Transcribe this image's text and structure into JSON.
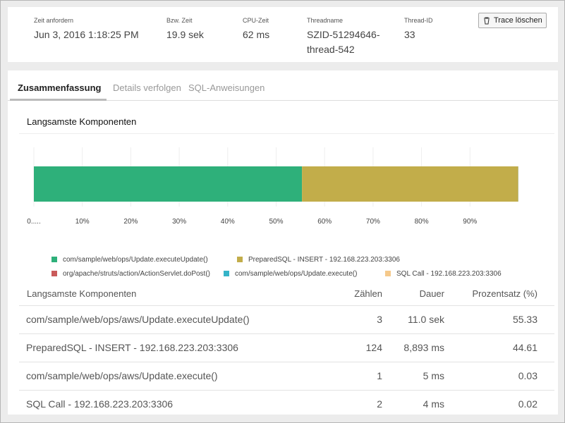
{
  "header": {
    "fields": [
      {
        "label": "Zeit anfordern",
        "value": "Jun 3, 2016 1:18:25 PM"
      },
      {
        "label": "Bzw. Zeit",
        "value": "19.9 sek"
      },
      {
        "label": "CPU-Zeit",
        "value": "62 ms"
      },
      {
        "label": "Threadname",
        "value": "SZID-51294646-thread-542"
      },
      {
        "label": "Thread-ID",
        "value": "33"
      }
    ],
    "button": "Trace löschen"
  },
  "tabs": [
    "Zusammenfassung",
    "Details verfolgen",
    "SQL-Anweisungen"
  ],
  "chart_data": {
    "type": "stacked-bar-horizontal",
    "title": "Langsamste Komponenten",
    "series": [
      {
        "name": "com/sample/web/ops/Update.executeUpdate()",
        "color": "#2eb07a",
        "values": [
          55.33
        ]
      },
      {
        "name": "PreparedSQL - INSERT - 192.168.223.203:3306",
        "color": "#c2ad4a",
        "values": [
          44.61
        ]
      },
      {
        "name": "org/apache/struts/action/ActionServlet.doPost()",
        "color": "#c95a5a",
        "values": [
          0.01
        ]
      },
      {
        "name": "com/sample/web/ops/Update.execute()",
        "color": "#35b4c8",
        "values": [
          0.03
        ]
      },
      {
        "name": "SQL Call - 192.168.223.203:3306",
        "color": "#f5c98b",
        "values": [
          0.02
        ]
      }
    ],
    "xlim": [
      0,
      100
    ],
    "xticks": [
      {
        "value": 0,
        "label": "0....."
      },
      {
        "value": 10,
        "label": "10%"
      },
      {
        "value": 20,
        "label": "20%"
      },
      {
        "value": 30,
        "label": "30%"
      },
      {
        "value": 40,
        "label": "40%"
      },
      {
        "value": 50,
        "label": "50%"
      },
      {
        "value": 60,
        "label": "60%"
      },
      {
        "value": 70,
        "label": "70%"
      },
      {
        "value": 80,
        "label": "80%"
      },
      {
        "value": 90,
        "label": "90%"
      }
    ],
    "grid": true
  },
  "table": {
    "columns": [
      "Langsamste Komponenten",
      "Zählen",
      "Dauer",
      "Prozentsatz (%)"
    ],
    "rows": [
      [
        "com/sample/web/ops/aws/Update.executeUpdate()",
        3,
        "11.0 sek",
        55.33
      ],
      [
        "PreparedSQL - INSERT - 192.168.223.203:3306",
        124,
        "8,893 ms",
        44.61
      ],
      [
        "com/sample/web/ops/aws/Update.execute()",
        1,
        "5 ms",
        0.03
      ],
      [
        "SQL Call - 192.168.223.203:3306",
        2,
        "4 ms",
        0.02
      ]
    ]
  }
}
